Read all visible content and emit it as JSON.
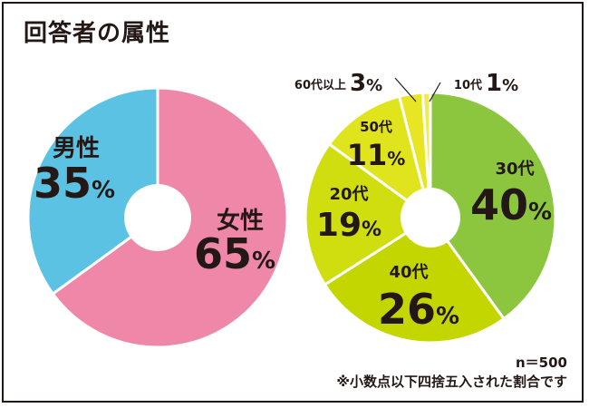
{
  "title": "回答者の属性",
  "percent_sign": "%",
  "chart_data": [
    {
      "type": "pie",
      "categories": [
        "女性",
        "男性"
      ],
      "values": [
        65,
        35
      ],
      "colors": [
        "#ee87a8",
        "#5bc2e3"
      ],
      "donut": true
    },
    {
      "type": "pie",
      "categories": [
        "30代",
        "40代",
        "20代",
        "50代",
        "60代以上",
        "10代"
      ],
      "values": [
        40,
        26,
        19,
        11,
        3,
        1
      ],
      "colors": [
        "#8cc63f",
        "#c4d600",
        "#d0de0f",
        "#dfe41c",
        "#e8e522",
        "#eeeb5a"
      ],
      "donut": true
    }
  ],
  "notes": {
    "sample_size": "n＝500",
    "rounding": "※小数点以下四捨五入された割合です"
  }
}
